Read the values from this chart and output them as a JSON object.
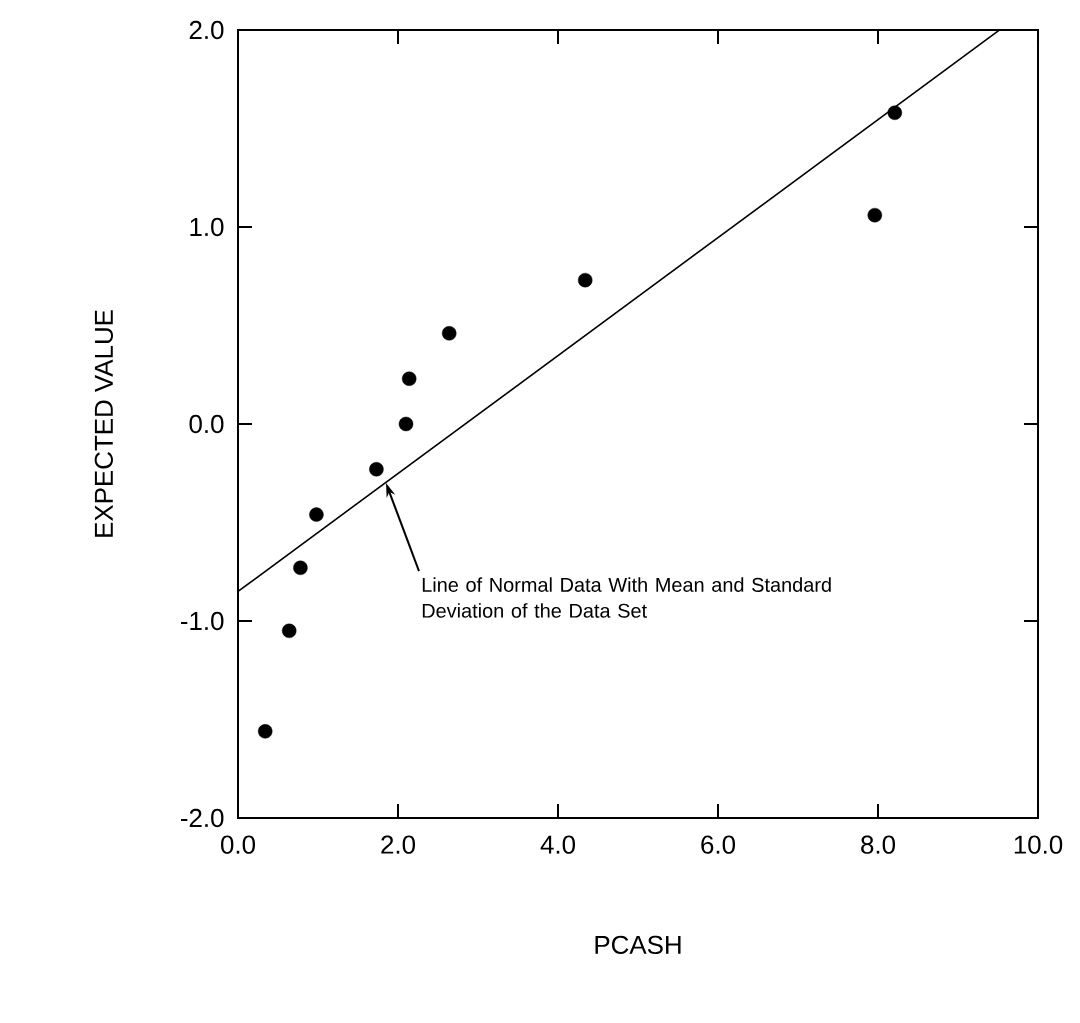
{
  "chart_data": {
    "type": "scatter",
    "xlabel": "PCASH",
    "ylabel": "EXPECTED VALUE",
    "xlim": [
      0,
      10
    ],
    "ylim": [
      -2,
      2
    ],
    "xticks": [
      {
        "value": 0,
        "label": "0.0"
      },
      {
        "value": 2,
        "label": "2.0"
      },
      {
        "value": 4,
        "label": "4.0"
      },
      {
        "value": 6,
        "label": "6.0"
      },
      {
        "value": 8,
        "label": "8.0"
      },
      {
        "value": 10,
        "label": "10.0"
      }
    ],
    "yticks": [
      {
        "value": -2,
        "label": "-2.0"
      },
      {
        "value": -1,
        "label": "-1.0"
      },
      {
        "value": 0,
        "label": "0.0"
      },
      {
        "value": 1,
        "label": "1.0"
      },
      {
        "value": 2,
        "label": "2.0"
      }
    ],
    "marker": "circle",
    "series": [
      {
        "color": "#000000",
        "x": [
          0.34,
          0.64,
          0.78,
          0.98,
          1.73,
          2.1,
          2.14,
          2.64,
          4.34,
          7.96,
          8.21
        ],
        "values": [
          -1.56,
          -1.05,
          -0.73,
          -0.46,
          -0.23,
          0.0,
          0.23,
          0.46,
          0.73,
          1.06,
          1.58
        ]
      },
      {
        "type": "line",
        "color": "#000000",
        "marker": "none",
        "line_style": "solid",
        "x": [
          0,
          9.52
        ],
        "values": [
          -0.85,
          2.0
        ]
      }
    ],
    "annotations": [
      {
        "text": "Line of Normal Data With Mean and Standard Deviation of the Data Set",
        "x": 1.85,
        "y": -0.3
      }
    ]
  }
}
